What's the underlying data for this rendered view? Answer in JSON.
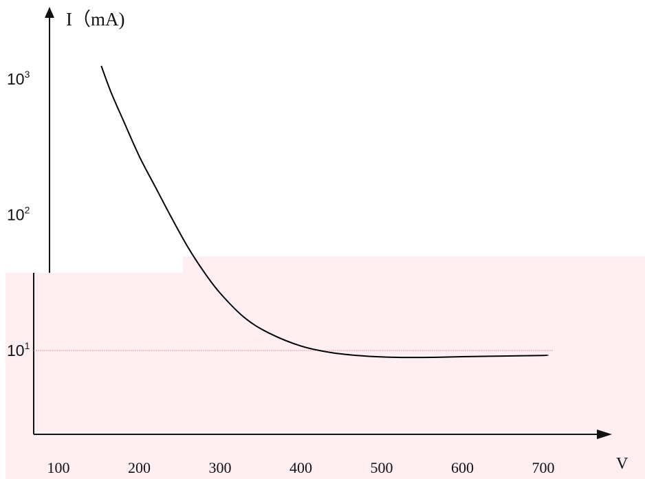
{
  "chart_data": {
    "type": "line",
    "title": "",
    "xlabel": "V",
    "ylabel": "I（mA)",
    "x_scale": "linear",
    "y_scale": "log",
    "xlim": [
      70,
      740
    ],
    "ylim": [
      3.5,
      2500
    ],
    "x_ticks": [
      100,
      200,
      300,
      400,
      500,
      600,
      700
    ],
    "y_ticks": [
      {
        "value": 10,
        "base": "10",
        "exp": "1"
      },
      {
        "value": 100,
        "base": "10",
        "exp": "2"
      },
      {
        "value": 1000,
        "base": "10",
        "exp": "3"
      }
    ],
    "reference_line": {
      "y": 10
    },
    "grid": false,
    "legend": "none",
    "series": [
      {
        "color": "#000000",
        "x": [
          153,
          165,
          180,
          200,
          220,
          240,
          260,
          280,
          300,
          330,
          360,
          400,
          440,
          480,
          520,
          560,
          600,
          650,
          700,
          705
        ],
        "y": [
          1250,
          800,
          500,
          270,
          160,
          95,
          58,
          38,
          26.5,
          17.5,
          13.5,
          10.8,
          9.6,
          9.1,
          8.9,
          8.9,
          9.0,
          9.1,
          9.2,
          9.25
        ]
      }
    ]
  }
}
